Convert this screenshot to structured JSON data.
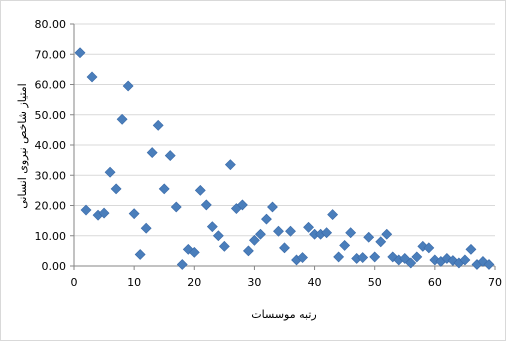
{
  "chart_data": {
    "type": "scatter",
    "title": "",
    "xlabel": "رتبه موسسات",
    "ylabel": "امتیاز شاخص نیروی انسانی",
    "xlim": [
      0,
      70
    ],
    "ylim": [
      0,
      80
    ],
    "x_ticks": [
      "0",
      "10",
      "20",
      "30",
      "40",
      "50",
      "60",
      "70"
    ],
    "y_ticks": [
      "0.00",
      "10.00",
      "20.00",
      "30.00",
      "40.00",
      "50.00",
      "60.00",
      "70.00",
      "80.00"
    ],
    "grid": "horizontal",
    "legend": "none",
    "marker": "diamond",
    "color": "#4a7ebb",
    "series": [
      {
        "x": [
          1,
          2,
          3,
          4,
          5,
          6,
          7,
          8,
          9,
          10,
          11,
          12,
          13,
          14,
          15,
          16,
          17,
          18,
          19,
          20,
          21,
          22,
          23,
          24,
          25,
          26,
          27,
          28,
          29,
          30,
          31,
          32,
          33,
          34,
          35,
          36,
          37,
          38,
          39,
          40,
          41,
          42,
          43,
          44,
          45,
          46,
          47,
          48,
          49,
          50,
          51,
          52,
          53,
          54,
          55,
          56,
          57,
          58,
          59,
          60,
          61,
          62,
          63,
          64,
          65,
          66,
          67,
          68,
          69
        ],
        "y": [
          70.5,
          18.5,
          62.5,
          16.8,
          17.5,
          31.0,
          25.5,
          48.5,
          59.5,
          17.3,
          3.8,
          12.5,
          37.5,
          46.5,
          25.5,
          36.5,
          19.5,
          0.5,
          5.5,
          4.5,
          25.0,
          20.2,
          13.0,
          10.0,
          6.5,
          33.5,
          19.0,
          20.2,
          5.0,
          8.5,
          10.5,
          15.5,
          19.5,
          11.5,
          6.0,
          11.5,
          2.0,
          2.8,
          12.8,
          10.5,
          10.5,
          11.0,
          17.0,
          3.0,
          6.8,
          11.0,
          2.5,
          2.8,
          9.5,
          3.0,
          8.0,
          10.5,
          3.0,
          2.0,
          2.5,
          1.0,
          3.0,
          6.5,
          6.0,
          2.0,
          1.5,
          2.5,
          1.8,
          1.0,
          2.0,
          5.5,
          0.5,
          1.5,
          0.5
        ]
      }
    ]
  }
}
